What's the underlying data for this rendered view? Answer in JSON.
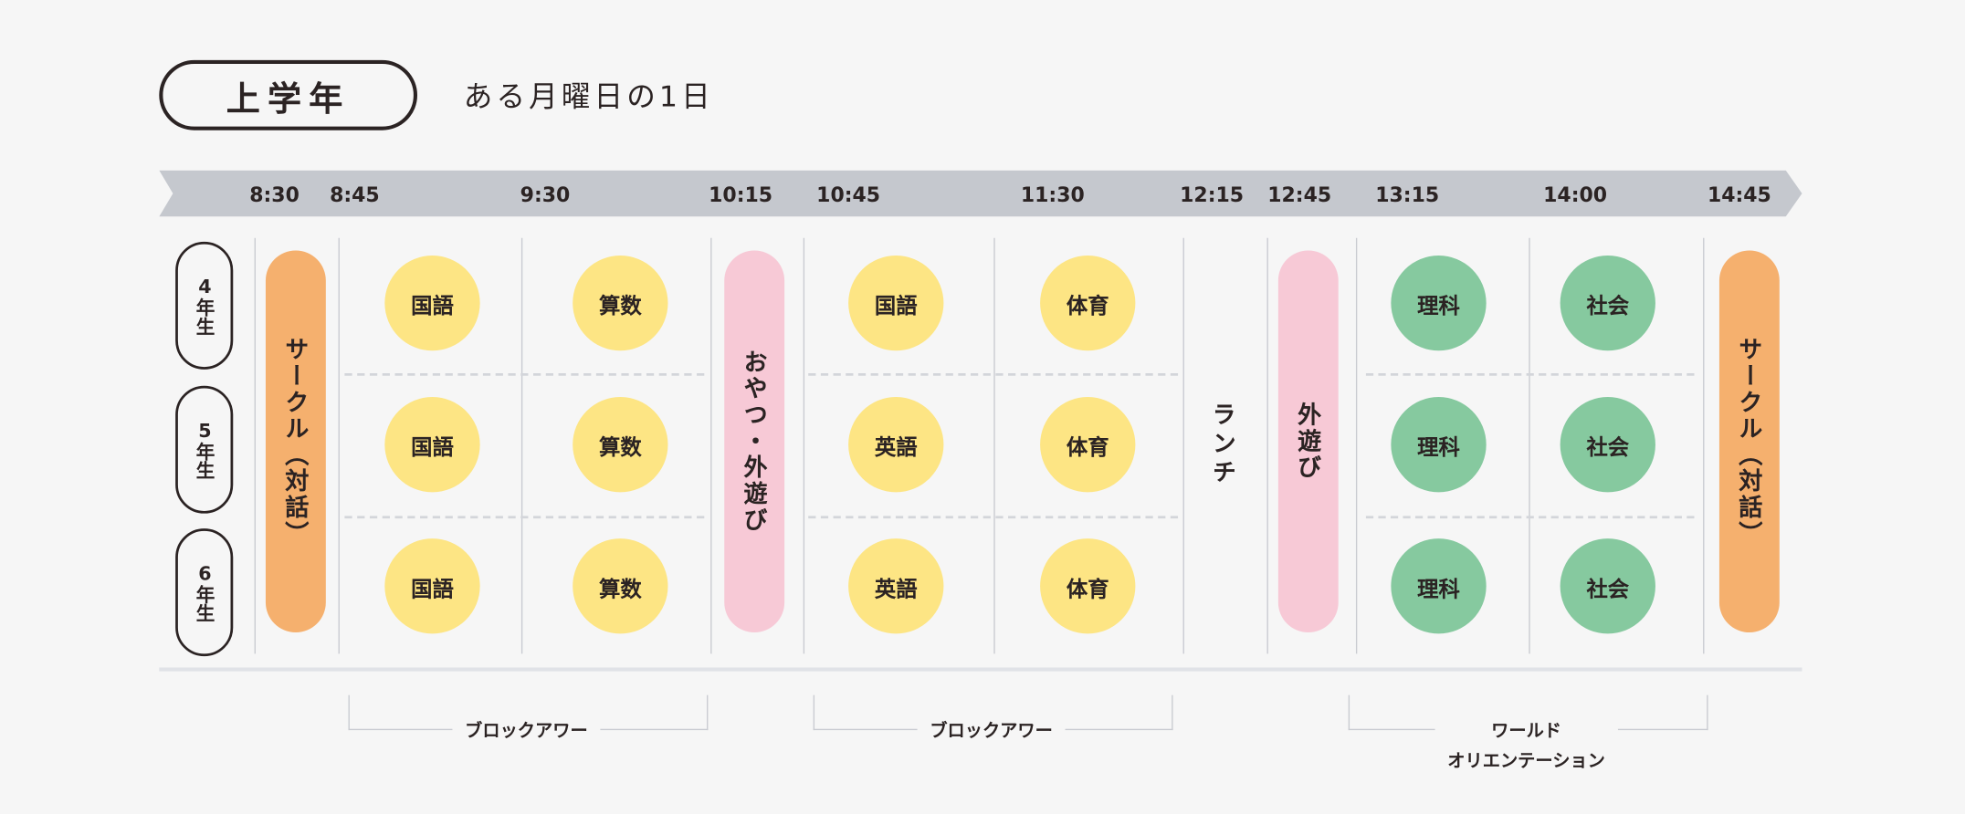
{
  "header": {
    "grade_group": "上学年",
    "subtitle": "ある月曜日の1日"
  },
  "timeline": [
    "8:30",
    "8:45",
    "9:30",
    "10:15",
    "10:45",
    "11:30",
    "12:15",
    "12:45",
    "13:15",
    "14:00",
    "14:45"
  ],
  "grades": [
    "4年生",
    "5年生",
    "6年生"
  ],
  "bars": {
    "circle_morning": "サークル（対話）",
    "snack_play": "おやつ・外遊び",
    "lunch": "ランチ",
    "outdoor_play": "外遊び",
    "circle_afternoon": "サークル（対話）"
  },
  "subjects": [
    [
      "国語",
      "算数",
      "国語",
      "体育",
      "理科",
      "社会"
    ],
    [
      "国語",
      "算数",
      "英語",
      "体育",
      "理科",
      "社会"
    ],
    [
      "国語",
      "算数",
      "英語",
      "体育",
      "理科",
      "社会"
    ]
  ],
  "blocks": {
    "block1": "ブロックアワー",
    "block2": "ブロックアワー",
    "world_1": "ワールド",
    "world_2": "オリエンテーション"
  },
  "colors": {
    "japanese_math_pe": "#fde584",
    "science_social": "#86c99f",
    "circle": "#f5b06e",
    "play": "#f7c9d6",
    "timeline": "#c5c8ce"
  }
}
